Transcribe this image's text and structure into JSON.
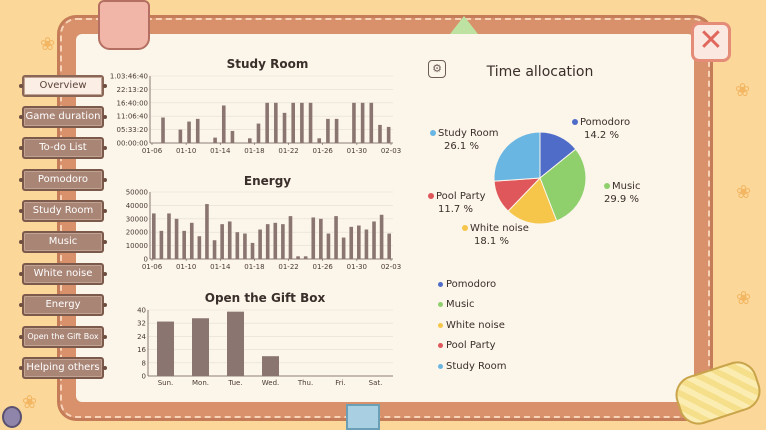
{
  "nav": {
    "items": [
      {
        "label": "Overview",
        "active": true
      },
      {
        "label": "Game duration"
      },
      {
        "label": "To-do List"
      },
      {
        "label": "Pomodoro"
      },
      {
        "label": "Study Room"
      },
      {
        "label": "Music"
      },
      {
        "label": "White noise"
      },
      {
        "label": "Energy"
      },
      {
        "label": "Open the Gift Box"
      },
      {
        "label": "Helping others"
      }
    ]
  },
  "close_label": "✕",
  "gear_icon": "gear-icon",
  "chart_data": [
    {
      "type": "bar",
      "title": "Study Room",
      "xlabel": "",
      "ylabel": "",
      "yticks": [
        "1.03:46:40",
        "22:13:20",
        "16:40:00",
        "11:06:40",
        "05:33:20",
        "00:00:00"
      ],
      "ylim_seconds": [
        0,
        100000
      ],
      "xticks": [
        "01-06",
        "01-10",
        "01-14",
        "01-18",
        "01-22",
        "01-26",
        "01-30",
        "02-03"
      ],
      "values": [
        0,
        38000,
        0,
        20000,
        32000,
        36000,
        0,
        8000,
        56000,
        18000,
        0,
        7000,
        29000,
        60000,
        60000,
        45000,
        60000,
        60000,
        60000,
        7000,
        36000,
        36000,
        0,
        60000,
        60000,
        60000,
        27000,
        24000
      ],
      "color": "#8a7570"
    },
    {
      "type": "bar",
      "title": "Energy",
      "xlabel": "",
      "ylabel": "",
      "yticks": [
        "50000",
        "40000",
        "30000",
        "20000",
        "10000",
        "0"
      ],
      "ylim": [
        0,
        50000
      ],
      "xticks": [
        "01-06",
        "01-10",
        "01-14",
        "01-18",
        "01-22",
        "01-26",
        "01-30",
        "02-03"
      ],
      "values": [
        34000,
        21000,
        34000,
        30000,
        21000,
        27000,
        17000,
        41000,
        14000,
        26000,
        28000,
        20000,
        19000,
        12000,
        22000,
        26000,
        27000,
        26000,
        32000,
        2000,
        2000,
        31000,
        30000,
        19000,
        32000,
        16000,
        24000,
        25000,
        22000,
        28000,
        33000,
        19000
      ],
      "color": "#8a7570"
    },
    {
      "type": "bar",
      "title": "Open the Gift Box",
      "xlabel": "",
      "ylabel": "",
      "yticks": [
        "40",
        "32",
        "24",
        "16",
        "8",
        "0"
      ],
      "ylim": [
        0,
        40
      ],
      "categories": [
        "Sun.",
        "Mon.",
        "Tue.",
        "Wed.",
        "Thu.",
        "Fri.",
        "Sat."
      ],
      "values": [
        33,
        35,
        39,
        12,
        0,
        0,
        0
      ],
      "color": "#8a7570"
    },
    {
      "type": "pie",
      "title": "Time allocation",
      "slices": [
        {
          "name": "Pomodoro",
          "value": 14.2,
          "label": "14.2 %",
          "color": "#4f6cc8"
        },
        {
          "name": "Music",
          "value": 29.9,
          "label": "29.9 %",
          "color": "#8fd06d"
        },
        {
          "name": "White noise",
          "value": 18.1,
          "label": "18.1 %",
          "color": "#f6c64a"
        },
        {
          "name": "Pool Party",
          "value": 11.7,
          "label": "11.7 %",
          "color": "#e0575b"
        },
        {
          "name": "Study Room",
          "value": 26.1,
          "label": "26.1 %",
          "color": "#6ab6e2"
        }
      ]
    }
  ]
}
